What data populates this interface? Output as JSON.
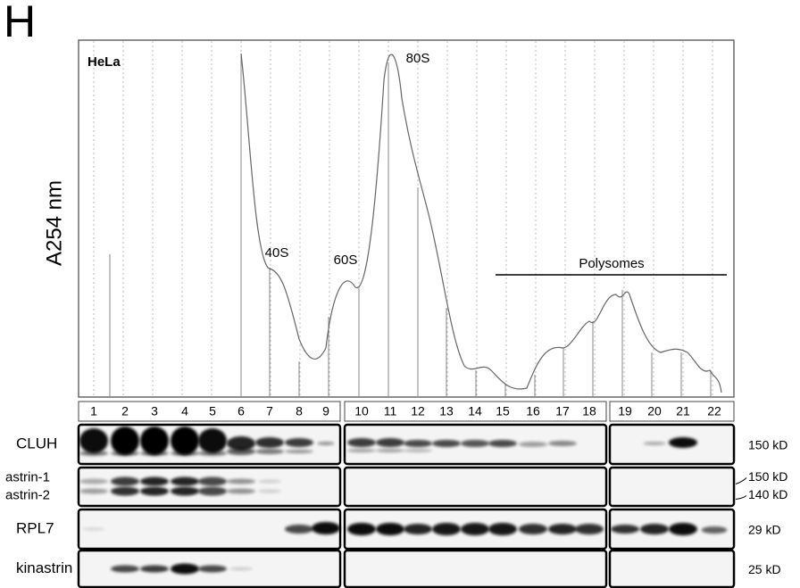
{
  "panel_label": "H",
  "profile": {
    "cell_line": "HeLa",
    "y_label": "A254 nm",
    "peaks": [
      "40S",
      "60S",
      "80S"
    ],
    "polysomes": "Polysomes"
  },
  "fractions": [
    "1",
    "2",
    "3",
    "4",
    "5",
    "6",
    "7",
    "8",
    "9",
    "10",
    "11",
    "12",
    "13",
    "14",
    "15",
    "16",
    "17",
    "18",
    "19",
    "20",
    "21",
    "22"
  ],
  "blots": [
    {
      "labels": [
        "CLUH"
      ],
      "sizes": [
        "150 kD"
      ]
    },
    {
      "labels": [
        "astrin-1",
        "astrin-2"
      ],
      "sizes": [
        "150 kD",
        "140 kD"
      ]
    },
    {
      "labels": [
        "RPL7"
      ],
      "sizes": [
        "29 kD"
      ]
    },
    {
      "labels": [
        "kinastrin"
      ],
      "sizes": [
        "25 kD"
      ]
    }
  ]
}
